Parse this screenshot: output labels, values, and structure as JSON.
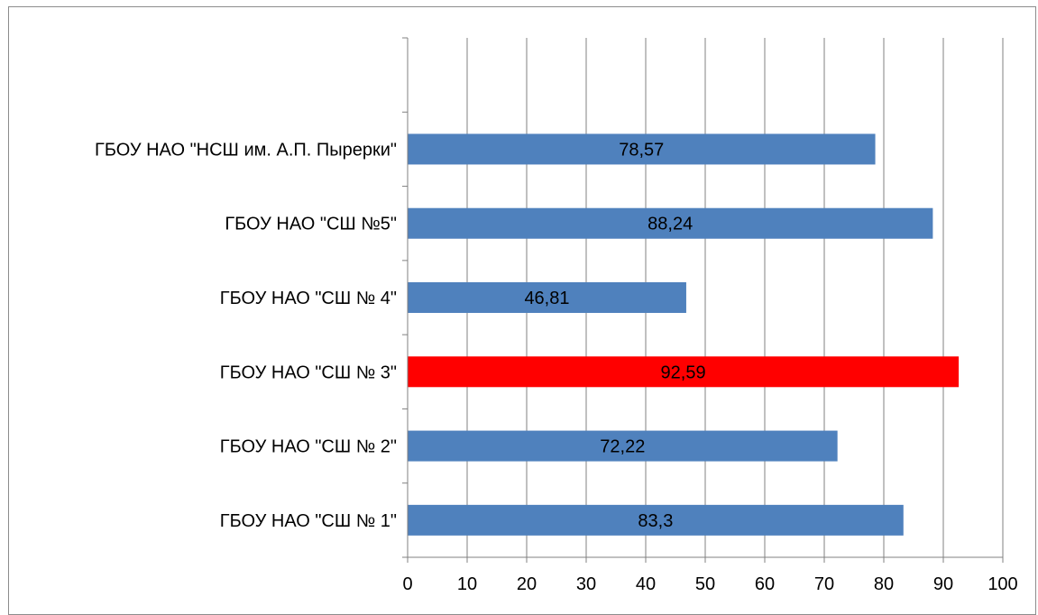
{
  "chart_data": {
    "type": "bar",
    "orientation": "horizontal",
    "categories": [
      "ГБОУ НАО \"СШ № 1\"",
      "ГБОУ НАО \"СШ № 2\"",
      "ГБОУ НАО \"СШ № 3\"",
      "ГБОУ НАО \"СШ № 4\"",
      "ГБОУ НАО \"СШ №5\"",
      "ГБОУ НАО \"НСШ им. А.П. Пырерки\""
    ],
    "values": [
      83.3,
      72.22,
      92.59,
      46.81,
      88.24,
      78.57
    ],
    "data_labels": [
      "83,3",
      "72,22",
      "92,59",
      "46,81",
      "88,24",
      "78,57"
    ],
    "xlim": [
      0,
      100
    ],
    "x_ticks": [
      "0",
      "10",
      "20",
      "30",
      "40",
      "50",
      "60",
      "70",
      "80",
      "90",
      "100"
    ],
    "category_slots": 7,
    "grid": true,
    "legend": "none",
    "colors": {
      "default_bar": "#4f81bd",
      "highlight_bar": "#ff0000",
      "gridline": "#808080",
      "axis": "#808080"
    },
    "highlight_category": "ГБОУ НАО \"СШ № 3\"",
    "title": "",
    "xlabel": "",
    "ylabel": ""
  }
}
